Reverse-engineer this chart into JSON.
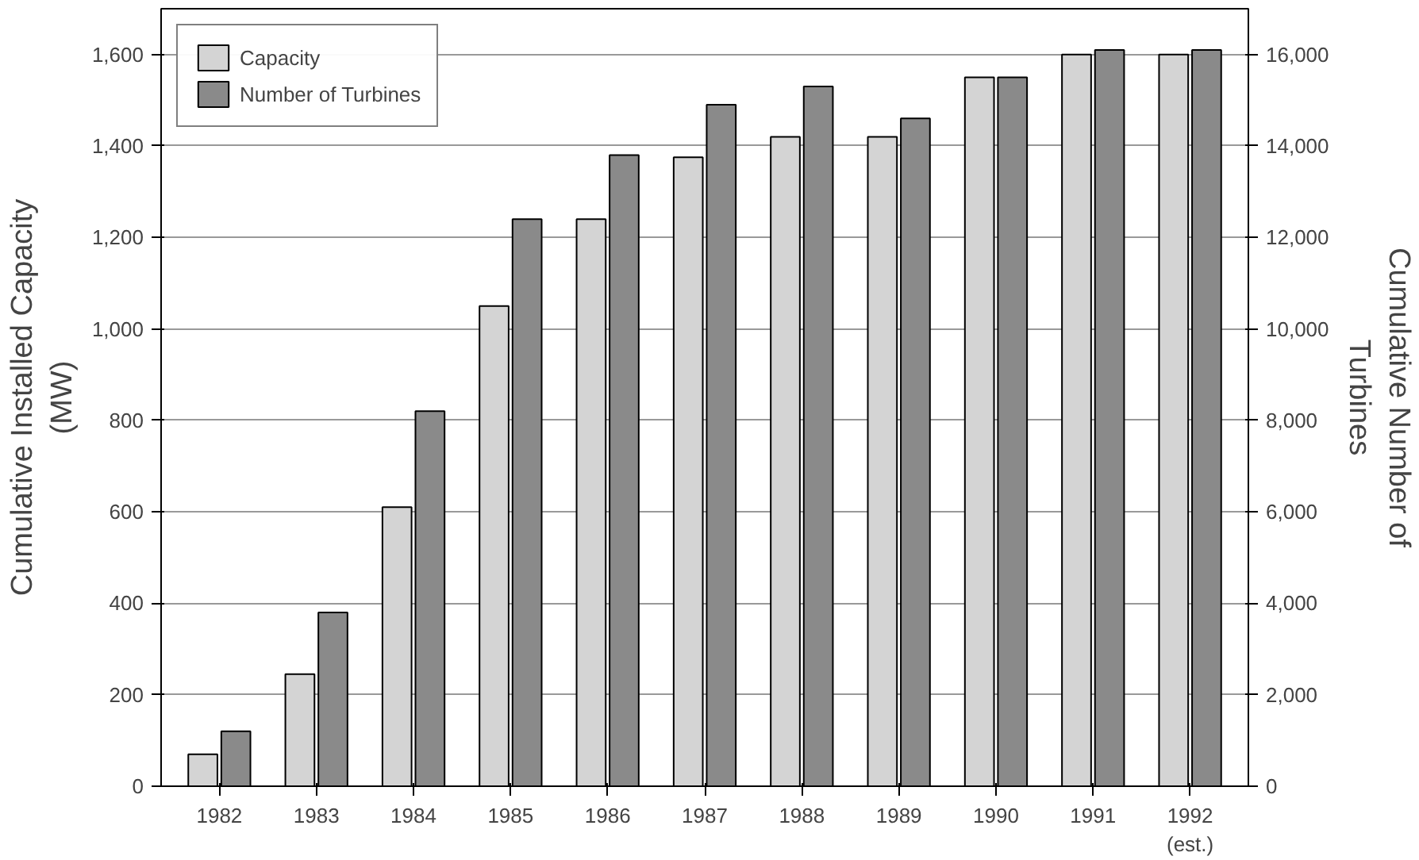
{
  "chart_data": {
    "type": "bar",
    "ylabel": "Cumulative Installed Capacity\n(MW)",
    "y2label": "Cumulative Number of\nTurbines",
    "categories": [
      "1982",
      "1983",
      "1984",
      "1985",
      "1986",
      "1987",
      "1988",
      "1989",
      "1990",
      "1991",
      "1992\n(est.)"
    ],
    "series": [
      {
        "name": "Capacity",
        "color": "#d4d4d4",
        "values": [
          70,
          245,
          610,
          1050,
          1240,
          1375,
          1420,
          1420,
          1550,
          1600,
          1600
        ]
      },
      {
        "name": "Number of Turbines",
        "color": "#8a8a8a",
        "axis": "y2",
        "values": [
          1200,
          3800,
          8200,
          12400,
          13800,
          14900,
          15300,
          14600,
          15500,
          16100,
          16100
        ]
      }
    ],
    "ylim": [
      0,
      1700
    ],
    "yticks": [
      {
        "value": 0,
        "label": "0"
      },
      {
        "value": 200,
        "label": "200"
      },
      {
        "value": 400,
        "label": "400"
      },
      {
        "value": 600,
        "label": "600"
      },
      {
        "value": 800,
        "label": "800"
      },
      {
        "value": 1000,
        "label": "1,000"
      },
      {
        "value": 1200,
        "label": "1,200"
      },
      {
        "value": 1400,
        "label": "1,400"
      },
      {
        "value": 1600,
        "label": "1,600"
      }
    ],
    "y2lim": [
      0,
      17000
    ],
    "y2ticks": [
      {
        "value": 0,
        "label": "0"
      },
      {
        "value": 2000,
        "label": "2,000"
      },
      {
        "value": 4000,
        "label": "4,000"
      },
      {
        "value": 6000,
        "label": "6,000"
      },
      {
        "value": 8000,
        "label": "8,000"
      },
      {
        "value": 10000,
        "label": "10,000"
      },
      {
        "value": 12000,
        "label": "12,000"
      },
      {
        "value": 14000,
        "label": "14,000"
      },
      {
        "value": 16000,
        "label": "16,000"
      }
    ],
    "grid": "y",
    "legend": "top left"
  }
}
